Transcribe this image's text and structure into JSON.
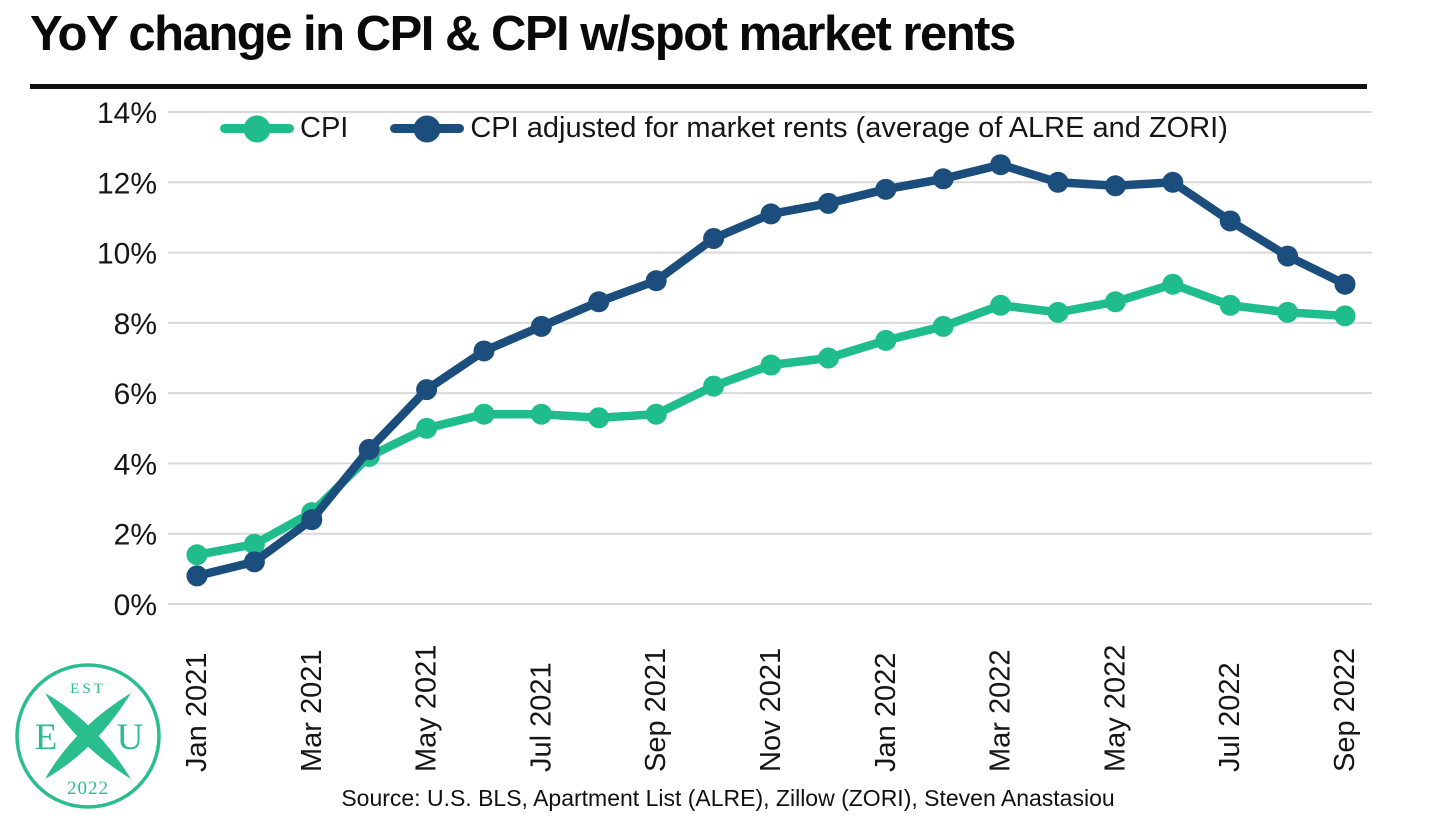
{
  "page": {
    "title": "YoY change in CPI & CPI w/spot market rents",
    "source": "Source: U.S. BLS, Apartment List (ALRE), Zillow (ZORI), Steven Anastasiou"
  },
  "logo": {
    "est": "EST",
    "year": "2022",
    "left_letter": "E",
    "right_letter": "U",
    "color": "#2abd8d"
  },
  "chart_data": {
    "type": "line",
    "title": "YoY change in CPI & CPI w/spot market rents",
    "x": [
      "Jan 2021",
      "Feb 2021",
      "Mar 2021",
      "Apr 2021",
      "May 2021",
      "Jun 2021",
      "Jul 2021",
      "Aug 2021",
      "Sep 2021",
      "Oct 2021",
      "Nov 2021",
      "Dec 2021",
      "Jan 2022",
      "Feb 2022",
      "Mar 2022",
      "Apr 2022",
      "May 2022",
      "Jun 2022",
      "Jul 2022",
      "Aug 2022",
      "Sep 2022"
    ],
    "x_tick_labels": [
      "Jan 2021",
      "Mar 2021",
      "May 2021",
      "Jul 2021",
      "Sep 2021",
      "Nov 2021",
      "Jan 2022",
      "Mar 2022",
      "May 2022",
      "Jul 2022",
      "Sep 2022"
    ],
    "x_tick_step": 2,
    "ylim": [
      0,
      14
    ],
    "y_tick_labels": [
      "0%",
      "2%",
      "4%",
      "6%",
      "8%",
      "10%",
      "12%",
      "14%"
    ],
    "y_tick_values": [
      0,
      2,
      4,
      6,
      8,
      10,
      12,
      14
    ],
    "grid": "horizontal",
    "legend_position": "top-inside",
    "series": [
      {
        "name": "CPI",
        "color": "#1fbd8c",
        "values": [
          1.4,
          1.7,
          2.6,
          4.2,
          5.0,
          5.4,
          5.4,
          5.3,
          5.4,
          6.2,
          6.8,
          7.0,
          7.5,
          7.9,
          8.5,
          8.3,
          8.6,
          9.1,
          8.5,
          8.3,
          8.2
        ]
      },
      {
        "name": "CPI adjusted for market rents (average of ALRE and ZORI)",
        "color": "#1b4e7d",
        "values": [
          0.8,
          1.2,
          2.4,
          4.4,
          6.1,
          7.2,
          7.9,
          8.6,
          9.2,
          10.4,
          11.1,
          11.4,
          11.8,
          12.1,
          12.5,
          12.0,
          11.9,
          12.0,
          10.9,
          9.9,
          9.1
        ]
      }
    ]
  }
}
